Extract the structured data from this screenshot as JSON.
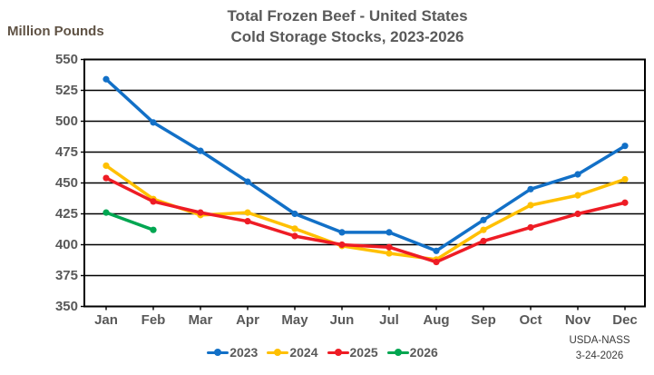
{
  "header": {
    "title_line1": "Total Frozen Beef - United States",
    "title_line2": "Cold Storage Stocks, 2023-2026",
    "y_axis_unit": "Million Pounds"
  },
  "attribution": {
    "source": "USDA-NASS",
    "date": "3-24-2026"
  },
  "colors": {
    "title_text": "#595959",
    "axis_text": "#595959",
    "unit_text": "#5f5244",
    "grid_line": "#000000",
    "blue_2023": "#1270C7",
    "gold_2024": "#FFC000",
    "red_2025": "#EE1C25",
    "green_2026": "#00A651"
  },
  "chart_data": {
    "type": "line",
    "title": "Total Frozen Beef - United States Cold Storage Stocks, 2023-2026",
    "xlabel": "",
    "ylabel": "Million Pounds",
    "ylim": [
      350,
      550
    ],
    "yticks": [
      550,
      525,
      500,
      475,
      450,
      425,
      400,
      375,
      350
    ],
    "grid": "horizontal",
    "legend_position": "bottom",
    "categories": [
      "Jan",
      "Feb",
      "Mar",
      "Apr",
      "May",
      "Jun",
      "Jul",
      "Aug",
      "Sep",
      "Oct",
      "Nov",
      "Dec"
    ],
    "series": [
      {
        "name": "2023",
        "color": "#1270C7",
        "values": [
          534,
          499,
          476,
          451,
          425,
          410,
          410,
          395,
          420,
          445,
          457,
          480
        ]
      },
      {
        "name": "2024",
        "color": "#FFC000",
        "values": [
          464,
          437,
          424,
          426,
          413,
          399,
          393,
          388,
          412,
          432,
          440,
          453
        ]
      },
      {
        "name": "2025",
        "color": "#EE1C25",
        "values": [
          454,
          435,
          426,
          419,
          407,
          400,
          398,
          386,
          403,
          414,
          425,
          434
        ]
      },
      {
        "name": "2026",
        "color": "#00A651",
        "values": [
          426,
          412,
          null,
          null,
          null,
          null,
          null,
          null,
          null,
          null,
          null,
          null
        ]
      }
    ]
  }
}
